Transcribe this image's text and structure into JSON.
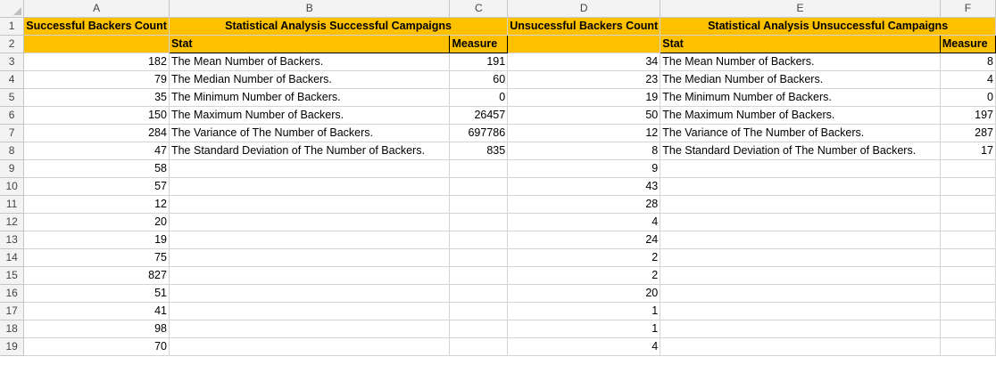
{
  "columns": [
    "A",
    "B",
    "C",
    "D",
    "E",
    "F"
  ],
  "headers": {
    "successful_backers_count": "Successful Backers Count",
    "stat_analysis_successful": "Statistical Analysis Successful Campaigns",
    "unsuccessful_backers_count": "Unsucessful Backers Count",
    "stat_analysis_unsuccessful": "Statistical Analysis Unsuccessful Campaigns",
    "stat": "Stat",
    "measure": "Measure"
  },
  "rows": [
    {
      "num": "3",
      "a": "182",
      "b": "The Mean Number of Backers.",
      "c": "191",
      "d": "34",
      "e": "The Mean Number of Backers.",
      "f": "8"
    },
    {
      "num": "4",
      "a": "79",
      "b": "The Median Number of Backers.",
      "c": "60",
      "d": "23",
      "e": "The Median Number of Backers.",
      "f": "4"
    },
    {
      "num": "5",
      "a": "35",
      "b": "The Minimum Number of Backers.",
      "c": "0",
      "d": "19",
      "e": "The Minimum Number of Backers.",
      "f": "0"
    },
    {
      "num": "6",
      "a": "150",
      "b": "The Maximum Number of Backers.",
      "c": "26457",
      "d": "50",
      "e": "The Maximum Number of Backers.",
      "f": "197"
    },
    {
      "num": "7",
      "a": "284",
      "b": "The Variance of The Number of Backers.",
      "c": "697786",
      "d": "12",
      "e": "The Variance of The Number of Backers.",
      "f": "287"
    },
    {
      "num": "8",
      "a": "47",
      "b": "The Standard Deviation of The Number of Backers.",
      "c": "835",
      "d": "8",
      "e": "The Standard Deviation of The Number of Backers.",
      "f": "17"
    },
    {
      "num": "9",
      "a": "58",
      "b": "",
      "c": "",
      "d": "9",
      "e": "",
      "f": ""
    },
    {
      "num": "10",
      "a": "57",
      "b": "",
      "c": "",
      "d": "43",
      "e": "",
      "f": ""
    },
    {
      "num": "11",
      "a": "12",
      "b": "",
      "c": "",
      "d": "28",
      "e": "",
      "f": ""
    },
    {
      "num": "12",
      "a": "20",
      "b": "",
      "c": "",
      "d": "4",
      "e": "",
      "f": ""
    },
    {
      "num": "13",
      "a": "19",
      "b": "",
      "c": "",
      "d": "24",
      "e": "",
      "f": ""
    },
    {
      "num": "14",
      "a": "75",
      "b": "",
      "c": "",
      "d": "2",
      "e": "",
      "f": ""
    },
    {
      "num": "15",
      "a": "827",
      "b": "",
      "c": "",
      "d": "2",
      "e": "",
      "f": ""
    },
    {
      "num": "16",
      "a": "51",
      "b": "",
      "c": "",
      "d": "20",
      "e": "",
      "f": ""
    },
    {
      "num": "17",
      "a": "41",
      "b": "",
      "c": "",
      "d": "1",
      "e": "",
      "f": ""
    },
    {
      "num": "18",
      "a": "98",
      "b": "",
      "c": "",
      "d": "1",
      "e": "",
      "f": ""
    },
    {
      "num": "19",
      "a": "70",
      "b": "",
      "c": "",
      "d": "4",
      "e": "",
      "f": ""
    }
  ],
  "colors": {
    "header_fill": "#ffc000",
    "gridline": "#d4d4d4",
    "heading_bg": "#f3f3f3"
  }
}
